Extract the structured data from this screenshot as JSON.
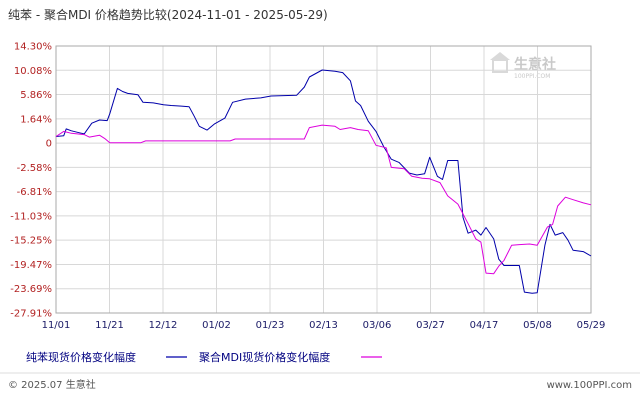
{
  "header": {
    "title": "纯苯 - 聚合MDI 价格趋势比较(2024-11-01 - 2025-05-29)"
  },
  "watermark": {
    "brand": "生意社",
    "site": "100PPI.COM"
  },
  "footer": {
    "copyright": "© 2025.07 生意社",
    "website": "www.100PPI.com"
  },
  "colors": {
    "series1": "#0000aa",
    "series2": "#dd00dd",
    "grid": "#d8d8d8",
    "ytick": "#b22222"
  },
  "chart_data": {
    "type": "line",
    "title": "纯苯 - 聚合MDI 价格趋势比较(2024-11-01 - 2025-05-29)",
    "xlabel": "",
    "ylabel": "",
    "grid": true,
    "legend_placement": "bottom",
    "x_ticks": [
      "11/01",
      "11/21",
      "12/12",
      "01/02",
      "01/23",
      "02/13",
      "03/06",
      "03/27",
      "04/17",
      "05/08",
      "05/29"
    ],
    "y_ticks": [
      "14.30%",
      "10.08%",
      "5.86%",
      "1.64%",
      "0",
      "-2.58%",
      "-6.81%",
      "-11.03%",
      "-15.25%",
      "-19.47%",
      "-23.69%",
      "-27.91%"
    ],
    "ylim": [
      -27.91,
      14.3
    ],
    "xlim": [
      "2024-11-01",
      "2025-05-29"
    ],
    "series": [
      {
        "name": "纯苯现货价格变化幅度",
        "color": "#0000aa",
        "points": [
          [
            "2024-11-01",
            0.0
          ],
          [
            "2024-11-04",
            0.1
          ],
          [
            "2024-11-05",
            1.2
          ],
          [
            "2024-11-07",
            0.9
          ],
          [
            "2024-11-10",
            0.6
          ],
          [
            "2024-11-12",
            0.4
          ],
          [
            "2024-11-15",
            2.1
          ],
          [
            "2024-11-18",
            2.6
          ],
          [
            "2024-11-21",
            2.5
          ],
          [
            "2024-11-22",
            3.6
          ],
          [
            "2024-11-25",
            7.6
          ],
          [
            "2024-11-27",
            7.1
          ],
          [
            "2024-11-29",
            6.8
          ],
          [
            "2024-12-03",
            6.6
          ],
          [
            "2024-12-05",
            5.4
          ],
          [
            "2024-12-09",
            5.3
          ],
          [
            "2024-12-13",
            5.0
          ],
          [
            "2024-12-16",
            4.9
          ],
          [
            "2024-12-20",
            4.8
          ],
          [
            "2024-12-23",
            4.7
          ],
          [
            "2024-12-25",
            3.2
          ],
          [
            "2024-12-27",
            1.6
          ],
          [
            "2024-12-30",
            1.0
          ],
          [
            "2025-01-02",
            2.0
          ],
          [
            "2025-01-06",
            2.9
          ],
          [
            "2025-01-09",
            5.4
          ],
          [
            "2025-01-14",
            5.9
          ],
          [
            "2025-01-20",
            6.1
          ],
          [
            "2025-01-24",
            6.4
          ],
          [
            "2025-02-03",
            6.5
          ],
          [
            "2025-02-06",
            7.8
          ],
          [
            "2025-02-08",
            9.4
          ],
          [
            "2025-02-13",
            10.5
          ],
          [
            "2025-02-18",
            10.3
          ],
          [
            "2025-02-21",
            10.1
          ],
          [
            "2025-02-24",
            8.8
          ],
          [
            "2025-02-26",
            5.6
          ],
          [
            "2025-02-28",
            4.9
          ],
          [
            "2025-03-03",
            2.4
          ],
          [
            "2025-03-06",
            0.8
          ],
          [
            "2025-03-09",
            -1.6
          ],
          [
            "2025-03-12",
            -3.6
          ],
          [
            "2025-03-15",
            -4.1
          ],
          [
            "2025-03-19",
            -5.8
          ],
          [
            "2025-03-22",
            -6.1
          ],
          [
            "2025-03-25",
            -5.9
          ],
          [
            "2025-03-27",
            -3.3
          ],
          [
            "2025-03-30",
            -6.3
          ],
          [
            "2025-04-01",
            -6.8
          ],
          [
            "2025-04-03",
            -3.8
          ],
          [
            "2025-04-07",
            -3.8
          ],
          [
            "2025-04-09",
            -12.8
          ],
          [
            "2025-04-11",
            -15.3
          ],
          [
            "2025-04-14",
            -14.8
          ],
          [
            "2025-04-16",
            -15.6
          ],
          [
            "2025-04-18",
            -14.4
          ],
          [
            "2025-04-21",
            -16.2
          ],
          [
            "2025-04-23",
            -19.4
          ],
          [
            "2025-04-25",
            -20.4
          ],
          [
            "2025-04-28",
            -20.4
          ],
          [
            "2025-05-01",
            -20.4
          ],
          [
            "2025-05-03",
            -24.6
          ],
          [
            "2025-05-06",
            -24.8
          ],
          [
            "2025-05-08",
            -24.7
          ],
          [
            "2025-05-11",
            -17.2
          ],
          [
            "2025-05-13",
            -13.9
          ],
          [
            "2025-05-15",
            -15.6
          ],
          [
            "2025-05-18",
            -15.2
          ],
          [
            "2025-05-20",
            -16.4
          ],
          [
            "2025-05-22",
            -18.0
          ],
          [
            "2025-05-26",
            -18.2
          ],
          [
            "2025-05-29",
            -18.9
          ]
        ]
      },
      {
        "name": "聚合MDI现货价格变化幅度",
        "color": "#dd00dd",
        "points": [
          [
            "2024-11-01",
            0.0
          ],
          [
            "2024-11-04",
            0.8
          ],
          [
            "2024-11-07",
            0.5
          ],
          [
            "2024-11-12",
            0.3
          ],
          [
            "2024-11-14",
            -0.1
          ],
          [
            "2024-11-18",
            0.2
          ],
          [
            "2024-11-20",
            -0.3
          ],
          [
            "2024-11-22",
            -1.0
          ],
          [
            "2024-12-04",
            -1.0
          ],
          [
            "2024-12-06",
            -0.7
          ],
          [
            "2025-01-08",
            -0.7
          ],
          [
            "2025-01-10",
            -0.4
          ],
          [
            "2025-02-06",
            -0.4
          ],
          [
            "2025-02-08",
            1.4
          ],
          [
            "2025-02-13",
            1.8
          ],
          [
            "2025-02-18",
            1.6
          ],
          [
            "2025-02-20",
            1.1
          ],
          [
            "2025-02-24",
            1.4
          ],
          [
            "2025-02-27",
            1.1
          ],
          [
            "2025-03-03",
            0.9
          ],
          [
            "2025-03-06",
            -1.4
          ],
          [
            "2025-03-10",
            -1.8
          ],
          [
            "2025-03-12",
            -4.9
          ],
          [
            "2025-03-17",
            -5.1
          ],
          [
            "2025-03-20",
            -6.3
          ],
          [
            "2025-03-24",
            -6.6
          ],
          [
            "2025-03-27",
            -6.7
          ],
          [
            "2025-03-31",
            -7.3
          ],
          [
            "2025-04-03",
            -9.4
          ],
          [
            "2025-04-07",
            -10.7
          ],
          [
            "2025-04-11",
            -13.8
          ],
          [
            "2025-04-14",
            -16.2
          ],
          [
            "2025-04-16",
            -16.7
          ],
          [
            "2025-04-18",
            -21.6
          ],
          [
            "2025-04-21",
            -21.7
          ],
          [
            "2025-04-23",
            -20.5
          ],
          [
            "2025-04-25",
            -19.6
          ],
          [
            "2025-04-28",
            -17.2
          ],
          [
            "2025-05-01",
            -17.1
          ],
          [
            "2025-05-05",
            -17.0
          ],
          [
            "2025-05-08",
            -17.2
          ],
          [
            "2025-05-12",
            -14.3
          ],
          [
            "2025-05-14",
            -13.9
          ],
          [
            "2025-05-16",
            -11.0
          ],
          [
            "2025-05-19",
            -9.6
          ],
          [
            "2025-05-22",
            -10.0
          ],
          [
            "2025-05-26",
            -10.5
          ],
          [
            "2025-05-29",
            -10.8
          ]
        ]
      }
    ]
  }
}
